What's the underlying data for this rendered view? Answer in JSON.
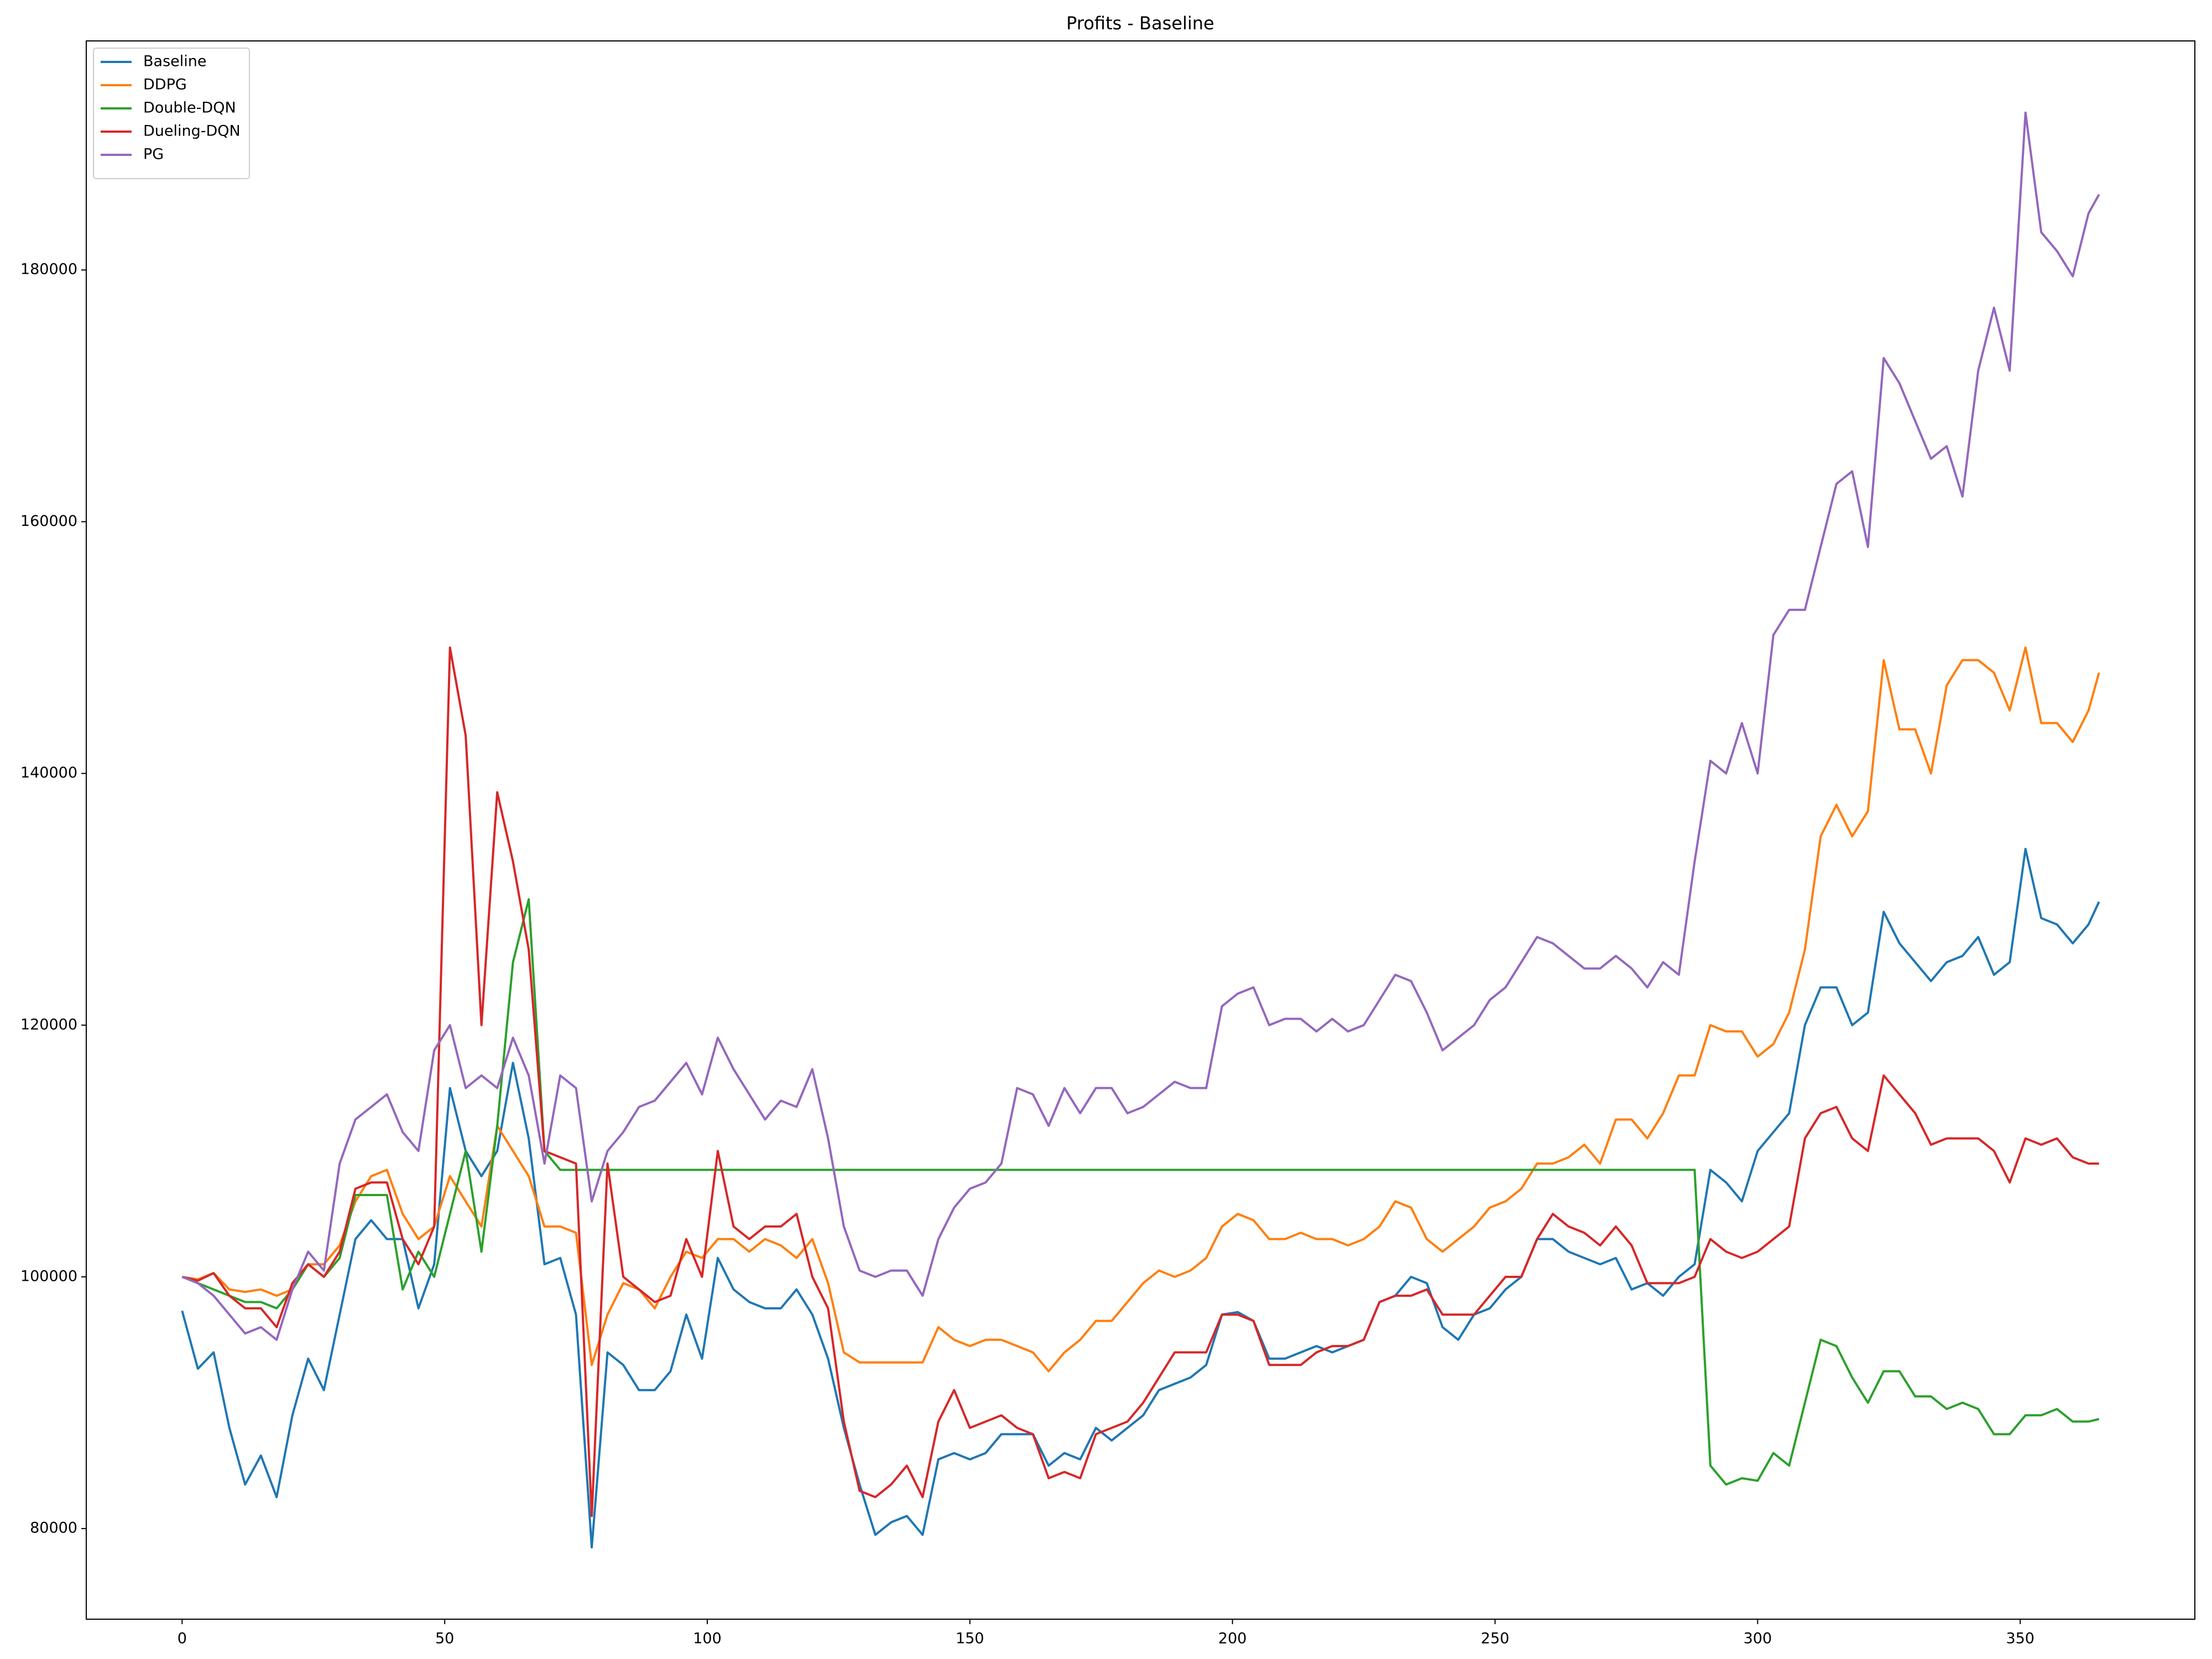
{
  "chart_data": {
    "type": "line",
    "title": "Profits - Baseline",
    "legend": "upper left",
    "xlim": [
      -18.25,
      383.25
    ],
    "ylim": [
      72800,
      198200
    ],
    "xticks": [
      0,
      50,
      100,
      150,
      200,
      250,
      300,
      350
    ],
    "yticks": [
      80000,
      100000,
      120000,
      140000,
      160000,
      180000
    ],
    "x": [
      0,
      3,
      6,
      9,
      12,
      15,
      18,
      21,
      24,
      27,
      30,
      33,
      36,
      39,
      42,
      45,
      48,
      51,
      54,
      57,
      60,
      63,
      66,
      69,
      72,
      75,
      78,
      81,
      84,
      87,
      90,
      93,
      96,
      99,
      102,
      105,
      108,
      111,
      114,
      117,
      120,
      123,
      126,
      129,
      132,
      135,
      138,
      141,
      144,
      147,
      150,
      153,
      156,
      159,
      162,
      165,
      168,
      171,
      174,
      177,
      180,
      183,
      186,
      189,
      192,
      195,
      198,
      201,
      204,
      207,
      210,
      213,
      216,
      219,
      222,
      225,
      228,
      231,
      234,
      237,
      240,
      243,
      246,
      249,
      252,
      255,
      258,
      261,
      264,
      267,
      270,
      273,
      276,
      279,
      282,
      285,
      288,
      291,
      294,
      297,
      300,
      303,
      306,
      309,
      312,
      315,
      318,
      321,
      324,
      327,
      330,
      333,
      336,
      339,
      342,
      345,
      348,
      351,
      354,
      357,
      360,
      363,
      365
    ],
    "series": [
      {
        "name": "Baseline",
        "color": "#1f77b4",
        "values": [
          97300,
          92700,
          94000,
          88000,
          83500,
          85800,
          82500,
          89000,
          93500,
          91000,
          97000,
          103000,
          104500,
          103000,
          103000,
          97500,
          101000,
          115000,
          110000,
          108000,
          110000,
          117000,
          111000,
          101000,
          101500,
          97000,
          78500,
          94000,
          93000,
          91000,
          91000,
          92500,
          97000,
          93500,
          101500,
          99000,
          98000,
          97500,
          97500,
          99000,
          97000,
          93500,
          88000,
          83500,
          79500,
          80500,
          81000,
          79500,
          85500,
          86000,
          85500,
          86000,
          87500,
          87500,
          87500,
          85000,
          86000,
          85500,
          88000,
          87000,
          88000,
          89000,
          91000,
          91500,
          92000,
          93000,
          97000,
          97200,
          96500,
          93500,
          93500,
          94000,
          94500,
          94000,
          94500,
          95000,
          98000,
          98500,
          100000,
          99500,
          96000,
          95000,
          97000,
          97500,
          99000,
          100000,
          103000,
          103000,
          102000,
          101500,
          101000,
          101500,
          99000,
          99500,
          98500,
          100000,
          101000,
          108500,
          107500,
          106000,
          110000,
          111500,
          113000,
          120000,
          123000,
          123000,
          120000,
          121000,
          129000,
          126500,
          125000,
          123500,
          125000,
          125500,
          127000,
          124000,
          125000,
          134000,
          128500,
          128000,
          126500,
          128000,
          129800
        ]
      },
      {
        "name": "DDPG",
        "color": "#ff7f0e",
        "values": [
          100000,
          99800,
          100300,
          99000,
          98800,
          99000,
          98500,
          99000,
          101000,
          101000,
          102500,
          106000,
          108000,
          108500,
          105000,
          103000,
          104000,
          108000,
          106000,
          104000,
          112000,
          110000,
          108000,
          104000,
          104000,
          103500,
          93000,
          97000,
          99500,
          99000,
          97500,
          100000,
          102000,
          101500,
          103000,
          103000,
          102000,
          103000,
          102500,
          101500,
          103000,
          99500,
          94000,
          93200,
          93200,
          93200,
          93200,
          93200,
          96000,
          95000,
          94500,
          95000,
          95000,
          94500,
          94000,
          92500,
          94000,
          95000,
          96500,
          96500,
          98000,
          99500,
          100500,
          100000,
          100500,
          101500,
          104000,
          105000,
          104500,
          103000,
          103000,
          103500,
          103000,
          103000,
          102500,
          103000,
          104000,
          106000,
          105500,
          103000,
          102000,
          103000,
          104000,
          105500,
          106000,
          107000,
          109000,
          109000,
          109500,
          110500,
          109000,
          112500,
          112500,
          111000,
          113000,
          116000,
          116000,
          120000,
          119500,
          119500,
          117500,
          118500,
          121000,
          126000,
          135000,
          137500,
          135000,
          137000,
          149000,
          143500,
          143500,
          140000,
          147000,
          149000,
          149000,
          148000,
          145000,
          150000,
          144000,
          144000,
          142500,
          145000,
          148000
        ]
      },
      {
        "name": "Double-DQN",
        "color": "#2ca02c",
        "values": [
          100000,
          99500,
          99000,
          98500,
          98000,
          98000,
          97500,
          99000,
          101000,
          100000,
          101500,
          106500,
          106500,
          106500,
          99000,
          102000,
          100000,
          105000,
          110000,
          102000,
          112000,
          125000,
          130000,
          110000,
          108500,
          108500,
          108500,
          108500,
          108500,
          108500,
          108500,
          108500,
          108500,
          108500,
          108500,
          108500,
          108500,
          108500,
          108500,
          108500,
          108500,
          108500,
          108500,
          108500,
          108500,
          108500,
          108500,
          108500,
          108500,
          108500,
          108500,
          108500,
          108500,
          108500,
          108500,
          108500,
          108500,
          108500,
          108500,
          108500,
          108500,
          108500,
          108500,
          108500,
          108500,
          108500,
          108500,
          108500,
          108500,
          108500,
          108500,
          108500,
          108500,
          108500,
          108500,
          108500,
          108500,
          108500,
          108500,
          108500,
          108500,
          108500,
          108500,
          108500,
          108500,
          108500,
          108500,
          108500,
          108500,
          108500,
          108500,
          108500,
          108500,
          108500,
          108500,
          108500,
          108500,
          85000,
          83500,
          84000,
          83800,
          86000,
          85000,
          90000,
          95000,
          94500,
          92000,
          90000,
          92500,
          92500,
          90500,
          90500,
          89500,
          90000,
          89500,
          87500,
          87500,
          89000,
          89000,
          89500,
          88500,
          88500,
          88700
        ]
      },
      {
        "name": "Dueling-DQN",
        "color": "#d62728",
        "values": [
          100000,
          99700,
          100300,
          98500,
          97500,
          97500,
          96000,
          99500,
          101000,
          100000,
          102000,
          107000,
          107500,
          107500,
          103000,
          101000,
          104000,
          150000,
          143000,
          120000,
          138500,
          133000,
          126000,
          110000,
          109500,
          109000,
          81000,
          109000,
          100000,
          99000,
          98000,
          98500,
          103000,
          100000,
          110000,
          104000,
          103000,
          104000,
          104000,
          105000,
          100000,
          97500,
          88500,
          83000,
          82500,
          83500,
          85000,
          82500,
          88500,
          91000,
          88000,
          88500,
          89000,
          88000,
          87500,
          84000,
          84500,
          84000,
          87500,
          88000,
          88500,
          90000,
          92000,
          94000,
          94000,
          94000,
          97000,
          97000,
          96500,
          93000,
          93000,
          93000,
          94000,
          94500,
          94500,
          95000,
          98000,
          98500,
          98500,
          99000,
          97000,
          97000,
          97000,
          98500,
          100000,
          100000,
          103000,
          105000,
          104000,
          103500,
          102500,
          104000,
          102500,
          99500,
          99500,
          99500,
          100000,
          103000,
          102000,
          101500,
          102000,
          103000,
          104000,
          111000,
          113000,
          113500,
          111000,
          110000,
          116000,
          114500,
          113000,
          110500,
          111000,
          111000,
          111000,
          110000,
          107500,
          111000,
          110500,
          111000,
          109500,
          109000,
          109000
        ]
      },
      {
        "name": "PG",
        "color": "#9467bd",
        "values": [
          100000,
          99500,
          98500,
          97000,
          95500,
          96000,
          95000,
          99000,
          102000,
          100500,
          109000,
          112500,
          113500,
          114500,
          111500,
          110000,
          118000,
          120000,
          115000,
          116000,
          115000,
          119000,
          116000,
          109000,
          116000,
          115000,
          106000,
          110000,
          111500,
          113500,
          114000,
          115500,
          117000,
          114500,
          119000,
          116500,
          114500,
          112500,
          114000,
          113500,
          116500,
          111000,
          104000,
          100500,
          100000,
          100500,
          100500,
          98500,
          103000,
          105500,
          107000,
          107500,
          109000,
          115000,
          114500,
          112000,
          115000,
          113000,
          115000,
          115000,
          113000,
          113500,
          114500,
          115500,
          115000,
          115000,
          121500,
          122500,
          123000,
          120000,
          120500,
          120500,
          119500,
          120500,
          119500,
          120000,
          122000,
          124000,
          123500,
          121000,
          118000,
          119000,
          120000,
          122000,
          123000,
          125000,
          127000,
          126500,
          125500,
          124500,
          124500,
          125500,
          124500,
          123000,
          125000,
          124000,
          133000,
          141000,
          140000,
          144000,
          140000,
          151000,
          153000,
          153000,
          158000,
          163000,
          164000,
          158000,
          173000,
          171000,
          168000,
          165000,
          166000,
          162000,
          172000,
          177000,
          172000,
          192500,
          183000,
          181500,
          179500,
          184500,
          186000
        ]
      }
    ]
  }
}
